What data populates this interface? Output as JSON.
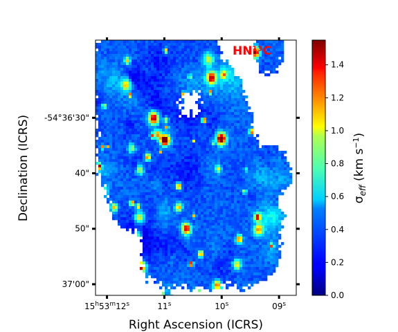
{
  "chart_data": {
    "type": "heatmap",
    "title": "",
    "annotation": "HN¹³C",
    "xlabel": "Right Ascension (ICRS)",
    "ylabel": "Declination (ICRS)",
    "x_ticks": [
      {
        "label": "15h53m12s",
        "value_s": 12
      },
      {
        "label": "11s",
        "value_s": 11
      },
      {
        "label": "10s",
        "value_s": 10
      },
      {
        "label": "09s",
        "value_s": 9
      }
    ],
    "y_ticks": [
      {
        "label": "-54°36'30\"",
        "value_arcsec": 30
      },
      {
        "label": "40\"",
        "value_arcsec": 40
      },
      {
        "label": "50\"",
        "value_arcsec": 50
      },
      {
        "label": "37'00\"",
        "value_arcsec": 60
      }
    ],
    "xlim_s": [
      12.2,
      8.7
    ],
    "ylim_arcsec": [
      16,
      62
    ],
    "colorbar": {
      "label": "σeff (km s⁻¹)",
      "colormap": "jet",
      "range": [
        0.0,
        1.55
      ],
      "ticks": [
        0.0,
        0.2,
        0.4,
        0.6,
        0.8,
        1.0,
        1.2,
        1.4
      ],
      "tick_labels": [
        "0.0",
        "0.2",
        "0.4",
        "0.6",
        "0.8",
        "1.0",
        "1.2",
        "1.4"
      ]
    },
    "map_note": "Effective velocity dispersion map; mostly 0.2–0.5 km s⁻¹ with localized peaks up to ~1.5 km s⁻¹; blank (white) where undetected."
  }
}
